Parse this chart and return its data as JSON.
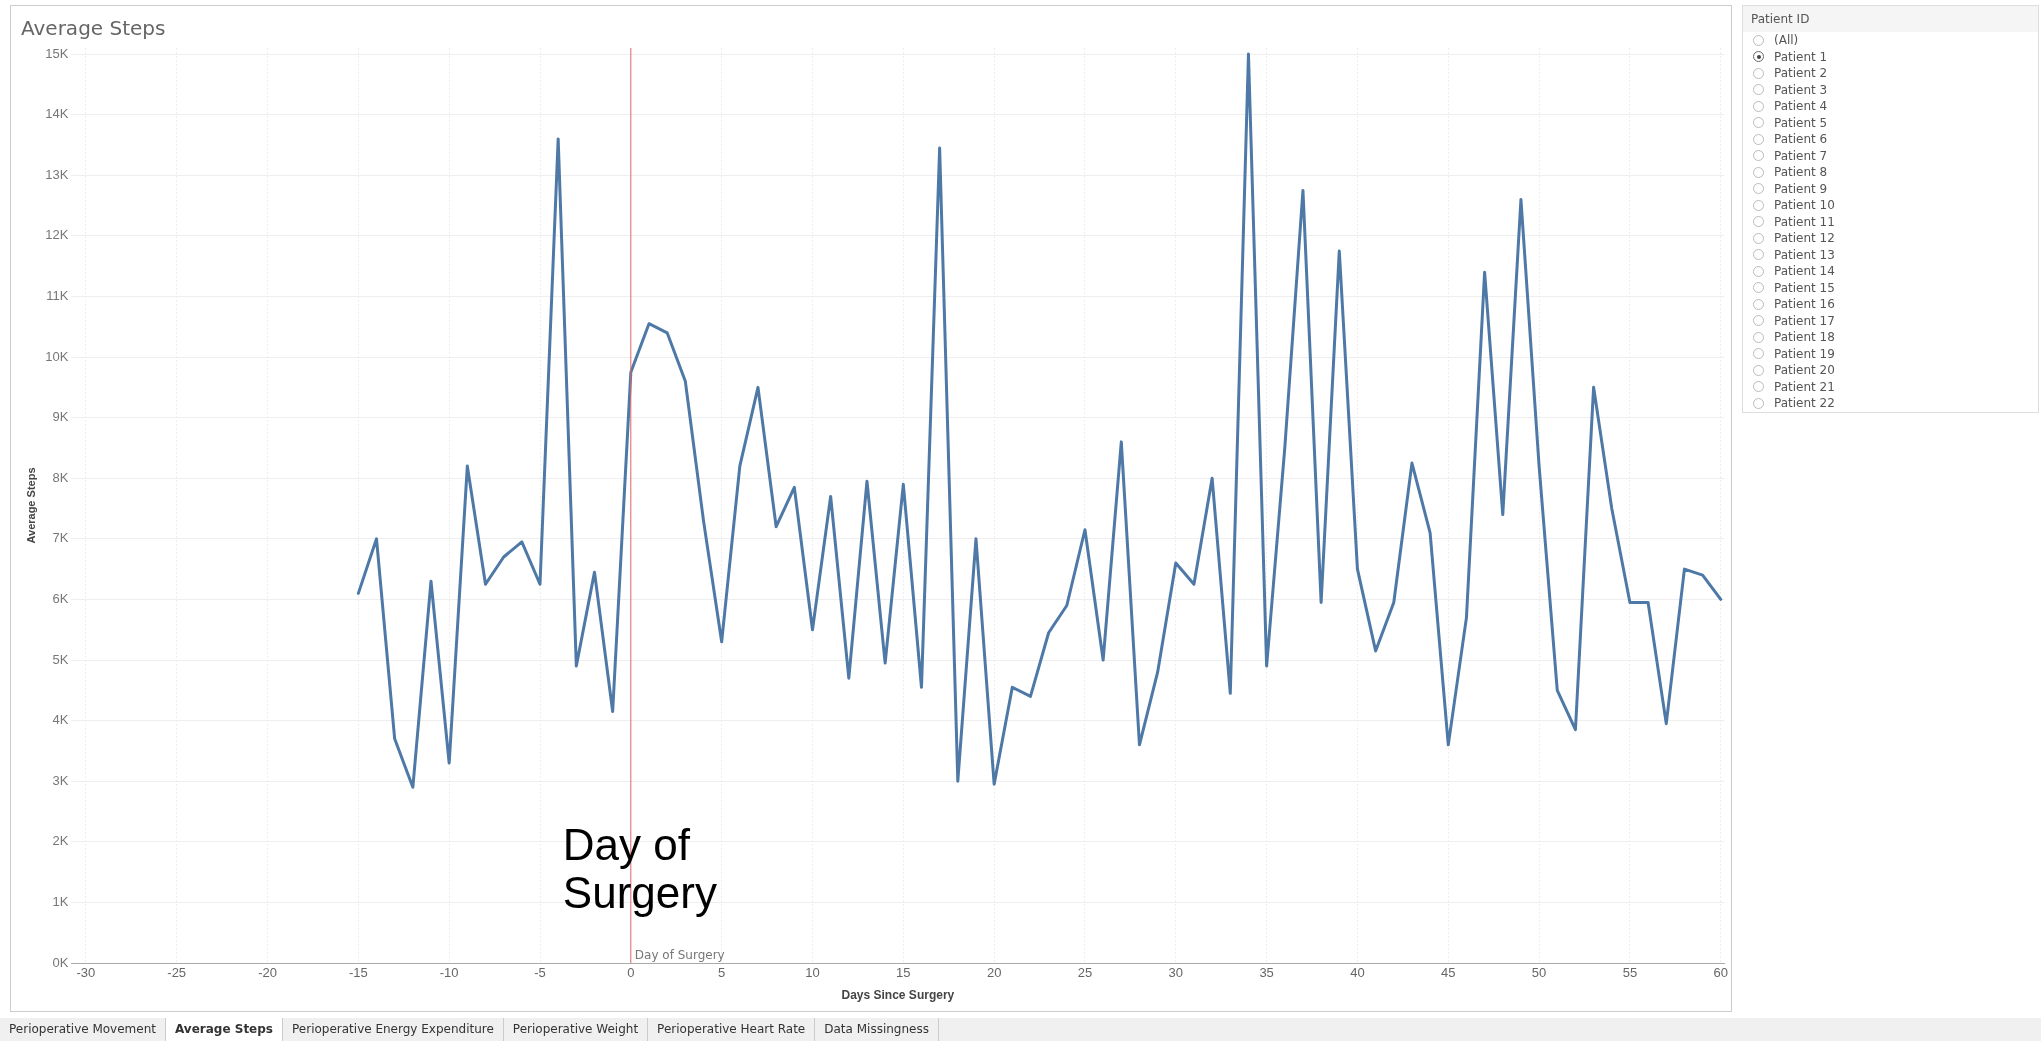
{
  "chart_data": {
    "type": "line",
    "title": "Average Steps",
    "xlabel": "Days Since Surgery",
    "ylabel": "Average Steps",
    "x": [
      -15,
      -14,
      -13,
      -12,
      -11,
      -10,
      -9,
      -8,
      -7,
      -6,
      -5,
      -4,
      -3,
      -2,
      -1,
      0,
      1,
      2,
      3,
      4,
      5,
      6,
      7,
      8,
      9,
      10,
      11,
      12,
      13,
      14,
      15,
      16,
      17,
      18,
      19,
      20,
      21,
      22,
      23,
      24,
      25,
      26,
      27,
      28,
      29,
      30,
      31,
      32,
      33,
      34,
      35,
      36,
      37,
      38,
      39,
      40,
      41,
      42,
      43,
      44,
      45,
      46,
      47,
      48,
      49,
      50,
      51,
      52,
      53,
      54,
      55,
      56,
      57,
      58,
      59,
      60
    ],
    "series": [
      {
        "color": "#4e79a7",
        "values": [
          6100,
          7000,
          3700,
          2900,
          6300,
          3300,
          8200,
          6250,
          6700,
          6950,
          6250,
          13600,
          4900,
          6450,
          4150,
          9750,
          10550,
          10400,
          9600,
          7300,
          5300,
          8200,
          9500,
          7200,
          7850,
          5500,
          7700,
          4700,
          7950,
          4950,
          7900,
          4550,
          13450,
          3000,
          7000,
          2950,
          4550,
          4400,
          5450,
          5900,
          7150,
          5000,
          8600,
          3600,
          4800,
          6600,
          6250,
          8000,
          4450,
          15000,
          4900,
          8500,
          12750,
          5950,
          11750,
          6500,
          5150,
          5950,
          8250,
          7100,
          3600,
          5700,
          11400,
          7400,
          12600,
          8200,
          4500,
          3850,
          9500,
          7500,
          5950,
          5950,
          3950,
          6500,
          6400,
          6000
        ]
      }
    ],
    "xlim": [
      -30.8,
      60.2
    ],
    "xticks": [
      -30,
      -25,
      -20,
      -15,
      -10,
      -5,
      0,
      5,
      10,
      15,
      20,
      25,
      30,
      35,
      40,
      45,
      50,
      55,
      60
    ],
    "ylim": [
      0,
      15100
    ],
    "yticks": [
      {
        "value": 0,
        "label": "0K"
      },
      {
        "value": 1000,
        "label": "1K"
      },
      {
        "value": 2000,
        "label": "2K"
      },
      {
        "value": 3000,
        "label": "3K"
      },
      {
        "value": 4000,
        "label": "4K"
      },
      {
        "value": 5000,
        "label": "5K"
      },
      {
        "value": 6000,
        "label": "6K"
      },
      {
        "value": 7000,
        "label": "7K"
      },
      {
        "value": 8000,
        "label": "8K"
      },
      {
        "value": 9000,
        "label": "9K"
      },
      {
        "value": 10000,
        "label": "10K"
      },
      {
        "value": 11000,
        "label": "11K"
      },
      {
        "value": 12000,
        "label": "12K"
      },
      {
        "value": 13000,
        "label": "13K"
      },
      {
        "value": 14000,
        "label": "14K"
      },
      {
        "value": 15000,
        "label": "15K"
      }
    ],
    "grid": true,
    "legend": false,
    "marker": "none",
    "line_style": "solid",
    "ref_lines": [
      {
        "axis": "x",
        "value": 0,
        "label": "Day of Surgery",
        "color": "#e06666"
      }
    ],
    "annotations": [
      {
        "text": "Day of Surgery",
        "x": 0,
        "y": 1500
      },
      "Patient ID",
      "(All)",
      "Patient 1",
      "Patient 2",
      "Patient 3",
      "Patient 4",
      "Patient 5",
      "Patient 6",
      "Patient 7",
      "Patient 8",
      "Patient 9",
      "Patient 10",
      "Patient 11",
      "Patient 12",
      "Patient 13",
      "Patient 14",
      "Patient 15",
      "Patient 16",
      "Patient 17",
      "Patient 18",
      "Patient 19",
      "Patient 20",
      "Patient 21",
      "Patient 22",
      "Perioperative Movement",
      "Average Steps",
      "Perioperative Energy Expenditure",
      "Perioperative Weight",
      "Perioperative Heart Rate",
      "Data Missingness"
    ]
  }
}
